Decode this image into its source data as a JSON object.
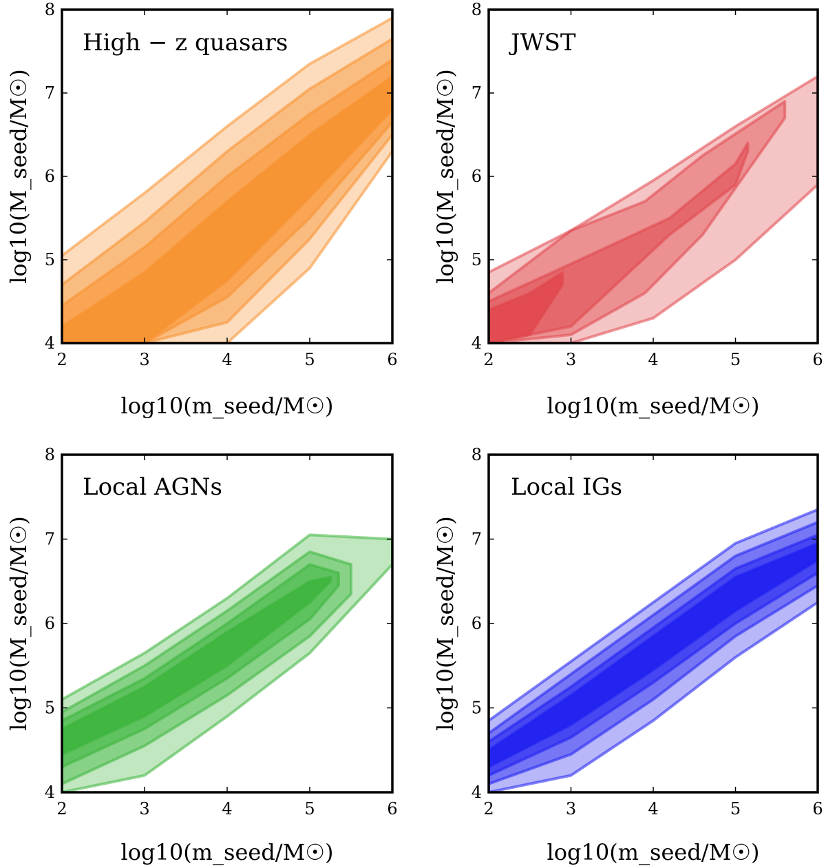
{
  "chart_data": [
    {
      "type": "contour",
      "title": "High − z quasars",
      "xlabel": "log10(m_seed/M☉)",
      "ylabel": "log10(M_seed/M☉)",
      "xlim": [
        2,
        6
      ],
      "ylim": [
        4,
        8
      ],
      "xticks": [
        "2",
        "3",
        "4",
        "5",
        "6"
      ],
      "yticks": [
        "4",
        "5",
        "6",
        "7",
        "8"
      ],
      "color": "#f7922f",
      "bands": [
        {
          "x": [
            2.0,
            3.0,
            4.0,
            5.0,
            6.0
          ],
          "upper": [
            5.05,
            5.8,
            6.6,
            7.35,
            7.9
          ],
          "lower": [
            4.0,
            4.0,
            4.0,
            4.9,
            6.3
          ]
        },
        {
          "x": [
            2.0,
            3.0,
            4.0,
            5.0,
            6.0
          ],
          "upper": [
            4.7,
            5.45,
            6.3,
            7.05,
            7.65
          ],
          "lower": [
            4.0,
            4.0,
            4.25,
            5.25,
            6.5
          ]
        },
        {
          "x": [
            2.0,
            3.0,
            4.0,
            5.0,
            6.0
          ],
          "upper": [
            4.45,
            5.15,
            6.0,
            6.75,
            7.4
          ],
          "lower": [
            4.0,
            4.0,
            4.55,
            5.5,
            6.65
          ]
        },
        {
          "x": [
            2.0,
            3.0,
            4.0,
            5.0,
            6.0
          ],
          "upper": [
            4.2,
            4.85,
            5.7,
            6.5,
            7.2
          ],
          "lower": [
            4.0,
            4.0,
            4.75,
            5.75,
            6.8
          ]
        }
      ]
    },
    {
      "type": "contour",
      "title": "JWST",
      "xlabel": "log10(m_seed/M☉)",
      "ylabel": "log10(M_seed/M☉)",
      "xlim": [
        2,
        6
      ],
      "ylim": [
        4,
        8
      ],
      "xticks": [
        "2",
        "3",
        "4",
        "5",
        "6"
      ],
      "yticks": [
        "4",
        "5",
        "6",
        "7",
        "8"
      ],
      "color": "#e0474c",
      "bands": [
        {
          "x": [
            2.0,
            3.0,
            4.0,
            5.0,
            6.0
          ],
          "upper": [
            4.85,
            5.35,
            5.95,
            6.6,
            7.2
          ],
          "lower": [
            4.0,
            4.0,
            4.3,
            5.0,
            5.9
          ]
        },
        {
          "x": [
            2.0,
            3.0,
            3.9,
            4.6,
            5.6
          ],
          "upper": [
            4.6,
            5.35,
            5.7,
            6.25,
            6.9
          ],
          "lower": [
            4.0,
            4.1,
            4.6,
            5.3,
            6.7
          ]
        },
        {
          "x": [
            2.0,
            3.0,
            4.2,
            5.0,
            5.15
          ],
          "upper": [
            4.5,
            4.95,
            5.5,
            6.15,
            6.4
          ],
          "lower": [
            4.0,
            4.2,
            5.3,
            5.9,
            6.3
          ]
        },
        {
          "x": [
            2.0,
            2.5,
            2.9
          ],
          "upper": [
            4.4,
            4.6,
            4.85
          ],
          "lower": [
            4.0,
            4.1,
            4.7
          ]
        }
      ]
    },
    {
      "type": "contour",
      "title": "Local AGNs",
      "xlabel": "log10(m_seed/M☉)",
      "ylabel": "log10(M_seed/M☉)",
      "xlim": [
        2,
        6
      ],
      "ylim": [
        4,
        8
      ],
      "xticks": [
        "2",
        "3",
        "4",
        "5",
        "6"
      ],
      "yticks": [
        "4",
        "5",
        "6",
        "7",
        "8"
      ],
      "color": "#3cb53c",
      "bands": [
        {
          "x": [
            2.0,
            3.0,
            4.0,
            5.0,
            6.0
          ],
          "upper": [
            5.1,
            5.65,
            6.3,
            7.05,
            7.0
          ],
          "lower": [
            4.0,
            4.2,
            4.9,
            5.65,
            6.7
          ]
        },
        {
          "x": [
            2.0,
            3.0,
            4.0,
            5.0,
            5.5
          ],
          "upper": [
            4.95,
            5.5,
            6.15,
            6.85,
            6.7
          ],
          "lower": [
            4.1,
            4.55,
            5.15,
            5.85,
            6.35
          ]
        },
        {
          "x": [
            2.0,
            3.0,
            4.0,
            5.0,
            5.35
          ],
          "upper": [
            4.85,
            5.35,
            6.0,
            6.7,
            6.6
          ],
          "lower": [
            4.3,
            4.75,
            5.35,
            6.05,
            6.45
          ]
        },
        {
          "x": [
            2.0,
            3.0,
            4.0,
            5.0,
            5.25
          ],
          "upper": [
            4.75,
            5.25,
            5.9,
            6.5,
            6.55
          ],
          "lower": [
            4.45,
            4.9,
            5.5,
            6.25,
            6.5
          ]
        }
      ]
    },
    {
      "type": "contour",
      "title": "Local IGs",
      "xlabel": "log10(m_seed/M☉)",
      "ylabel": "log10(M_seed/M☉)",
      "xlim": [
        2,
        6
      ],
      "ylim": [
        4,
        8
      ],
      "xticks": [
        "2",
        "3",
        "4",
        "5",
        "6"
      ],
      "yticks": [
        "4",
        "5",
        "6",
        "7",
        "8"
      ],
      "color": "#1f1ff0",
      "bands": [
        {
          "x": [
            2.0,
            3.0,
            4.0,
            5.0,
            6.0
          ],
          "upper": [
            4.85,
            5.55,
            6.25,
            6.95,
            7.35
          ],
          "lower": [
            4.0,
            4.2,
            4.85,
            5.6,
            6.25
          ]
        },
        {
          "x": [
            2.0,
            3.0,
            4.0,
            5.0,
            6.0
          ],
          "upper": [
            4.7,
            5.4,
            6.1,
            6.8,
            7.2
          ],
          "lower": [
            4.1,
            4.45,
            5.1,
            5.85,
            6.45
          ]
        },
        {
          "x": [
            2.0,
            3.0,
            4.0,
            5.0,
            6.0
          ],
          "upper": [
            4.6,
            5.25,
            5.95,
            6.65,
            7.05
          ],
          "lower": [
            4.2,
            4.65,
            5.3,
            6.0,
            6.6
          ]
        },
        {
          "x": [
            2.0,
            3.0,
            4.0,
            5.0,
            6.0
          ],
          "upper": [
            4.5,
            5.15,
            5.85,
            6.55,
            6.95
          ],
          "lower": [
            4.3,
            4.8,
            5.45,
            6.15,
            6.75
          ]
        }
      ]
    }
  ]
}
